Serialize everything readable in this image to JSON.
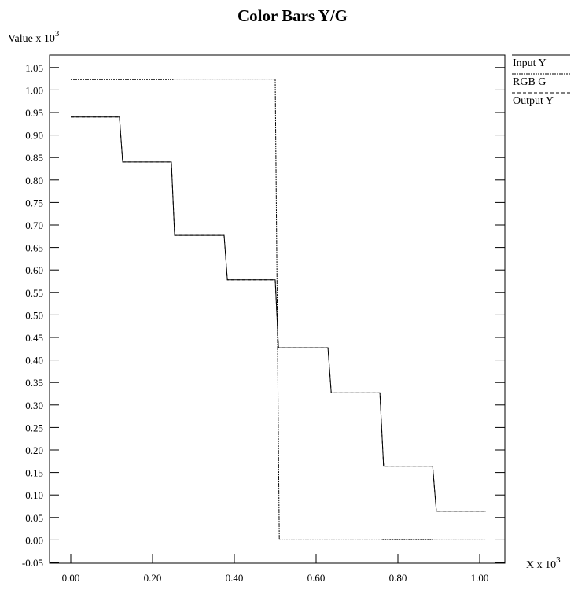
{
  "chart_data": {
    "type": "line",
    "title": "Color Bars Y/G",
    "ylabel": "Value x 10",
    "ylabel_exp": "3",
    "xlabel": "X x 10",
    "xlabel_exp": "3",
    "xlim": [
      -0.052,
      1.062
    ],
    "ylim": [
      -0.05,
      1.078
    ],
    "xticks": [
      "0.00",
      "0.20",
      "0.40",
      "0.60",
      "0.80",
      "1.00"
    ],
    "yticks": [
      "-0.05",
      "0.00",
      "0.05",
      "0.10",
      "0.15",
      "0.20",
      "0.25",
      "0.30",
      "0.35",
      "0.40",
      "0.45",
      "0.50",
      "0.55",
      "0.60",
      "0.65",
      "0.70",
      "0.75",
      "0.80",
      "0.85",
      "0.90",
      "0.95",
      "1.00",
      "1.05"
    ],
    "grid": false,
    "legend_position": "right",
    "series": [
      {
        "name": "Input Y",
        "style": "solid",
        "x": [
          0,
          0.119,
          0.127,
          0.246,
          0.254,
          0.375,
          0.383,
          0.5,
          0.508,
          0.629,
          0.637,
          0.756,
          0.765,
          0.885,
          0.894,
          1.015
        ],
        "y": [
          0.94,
          0.94,
          0.84,
          0.84,
          0.677,
          0.677,
          0.578,
          0.578,
          0.427,
          0.427,
          0.327,
          0.327,
          0.164,
          0.164,
          0.064,
          0.064
        ]
      },
      {
        "name": "RGB G",
        "style": "dotted",
        "x": [
          0,
          0.25,
          0.25,
          0.5,
          0.51,
          0.76,
          0.76,
          0.885,
          0.885,
          1.015
        ],
        "y": [
          1.023,
          1.023,
          1.024,
          1.024,
          0,
          0,
          0.001,
          0.001,
          0,
          0
        ]
      },
      {
        "name": "Output Y",
        "style": "dashed",
        "x": [
          0,
          0.119,
          0.127,
          0.246,
          0.254,
          0.375,
          0.383,
          0.5,
          0.508,
          0.629,
          0.637,
          0.756,
          0.765,
          0.885,
          0.894,
          1.015
        ],
        "y": [
          0.94,
          0.94,
          0.84,
          0.84,
          0.677,
          0.677,
          0.578,
          0.578,
          0.427,
          0.427,
          0.327,
          0.327,
          0.164,
          0.164,
          0.064,
          0.064
        ]
      }
    ]
  }
}
